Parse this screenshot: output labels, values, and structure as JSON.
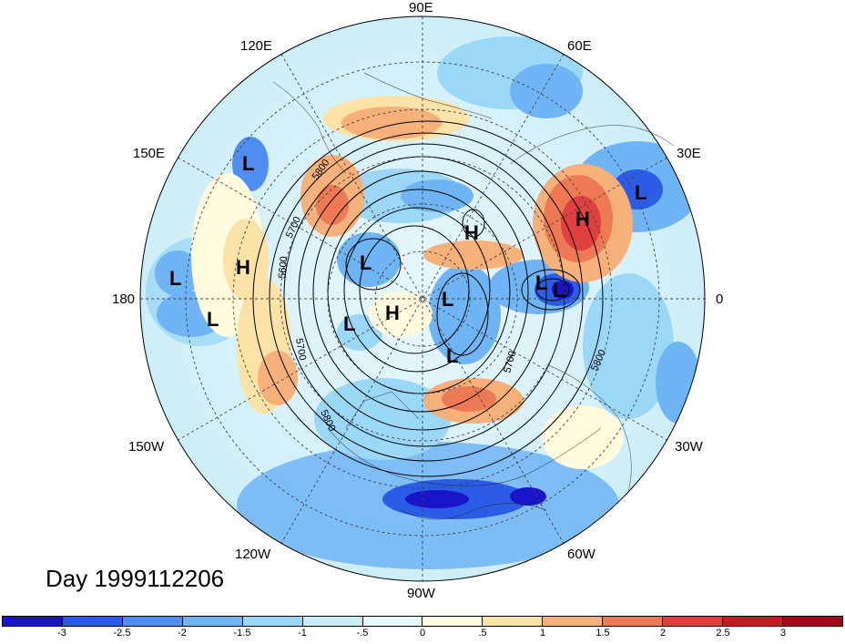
{
  "date_label": "Day 1999112206",
  "longitude_labels": [
    "90E",
    "60E",
    "30E",
    "0",
    "30W",
    "60W",
    "90W",
    "120W",
    "150W",
    "180",
    "150E",
    "120E"
  ],
  "contour_labels": [
    "5800",
    "5700",
    "5600",
    "5700",
    "5800",
    "5700",
    "5800"
  ],
  "systems": [
    {
      "type": "L"
    },
    {
      "type": "L"
    },
    {
      "type": "H"
    },
    {
      "type": "L"
    },
    {
      "type": "H"
    },
    {
      "type": "L"
    },
    {
      "type": "L"
    },
    {
      "type": "L"
    },
    {
      "type": "H"
    },
    {
      "type": "L"
    },
    {
      "type": "L"
    },
    {
      "type": "L"
    },
    {
      "type": "H"
    },
    {
      "type": "L"
    }
  ],
  "colorbar": {
    "ticks": [
      "-3",
      "-2.5",
      "-2",
      "-1.5",
      "-1",
      "-.5",
      "0",
      ".5",
      "1",
      "1.5",
      "2",
      "2.5",
      "3"
    ],
    "colors": [
      "#1a14c8",
      "#2b5ce6",
      "#4f8ef0",
      "#6fb4f4",
      "#9bd8f8",
      "#c8eef8",
      "#e8f8fb",
      "#fffbdc",
      "#fbe2a6",
      "#f6b07a",
      "#ee7a55",
      "#e04040",
      "#c81a22",
      "#a00a18"
    ]
  }
}
